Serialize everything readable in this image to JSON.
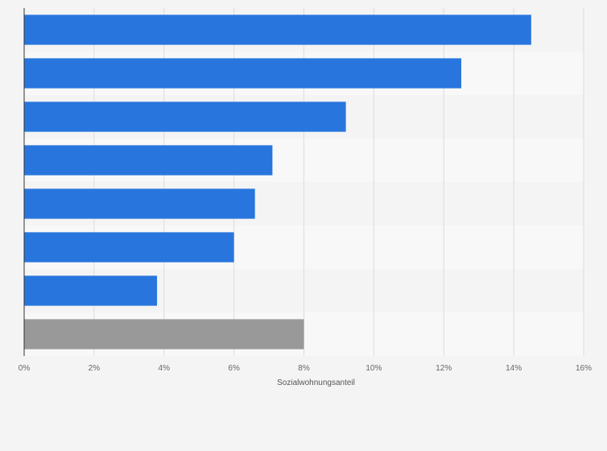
{
  "chart_data": {
    "type": "bar",
    "orientation": "horizontal",
    "xlabel": "Sozialwohnungsanteil",
    "ylabel": "",
    "categories": [
      "",
      "",
      "",
      "",
      "",
      "",
      "",
      ""
    ],
    "values": [
      14.5,
      12.5,
      9.2,
      7.1,
      6.6,
      6.0,
      3.8,
      8.0
    ],
    "bar_colors": [
      "#2876dd",
      "#2876dd",
      "#2876dd",
      "#2876dd",
      "#2876dd",
      "#2876dd",
      "#2876dd",
      "#999999"
    ],
    "xlim": [
      0,
      16
    ],
    "xticks": [
      0,
      2,
      4,
      6,
      8,
      10,
      12,
      14,
      16
    ],
    "xtick_labels": [
      "0%",
      "2%",
      "4%",
      "6%",
      "8%",
      "10%",
      "12%",
      "14%",
      "16%"
    ],
    "grid": true,
    "legend": "none"
  }
}
